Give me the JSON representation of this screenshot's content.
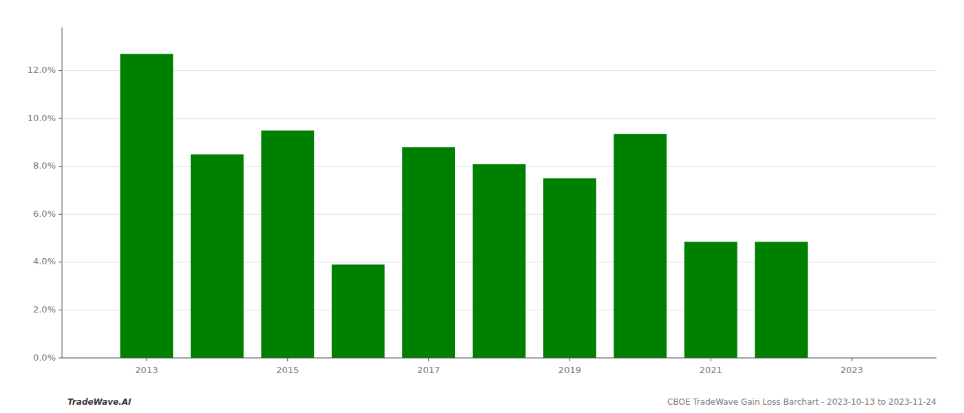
{
  "chart_data": {
    "type": "bar",
    "x": [
      2013,
      2014,
      2015,
      2016,
      2017,
      2018,
      2019,
      2020,
      2021,
      2022
    ],
    "values": [
      0.127,
      0.085,
      0.095,
      0.039,
      0.088,
      0.081,
      0.075,
      0.0935,
      0.0485,
      0.0485
    ],
    "color": "#008000",
    "xlim": [
      2011.8,
      2024.2
    ],
    "xticks": [
      2013,
      2015,
      2017,
      2019,
      2021,
      2023
    ],
    "ylim": [
      0,
      0.138
    ],
    "yticks": [
      {
        "value": 0.0,
        "label": "0.0%"
      },
      {
        "value": 0.02,
        "label": "2.0%"
      },
      {
        "value": 0.04,
        "label": "4.0%"
      },
      {
        "value": 0.06,
        "label": "6.0%"
      },
      {
        "value": 0.08,
        "label": "8.0%"
      },
      {
        "value": 0.1,
        "label": "10.0%"
      },
      {
        "value": 0.12,
        "label": "12.0%"
      }
    ],
    "grid": true,
    "annotations": [
      "TradeWave.AI",
      "CBOE TradeWave Gain Loss Barchart - 2023-10-13 to 2023-11-24"
    ]
  }
}
